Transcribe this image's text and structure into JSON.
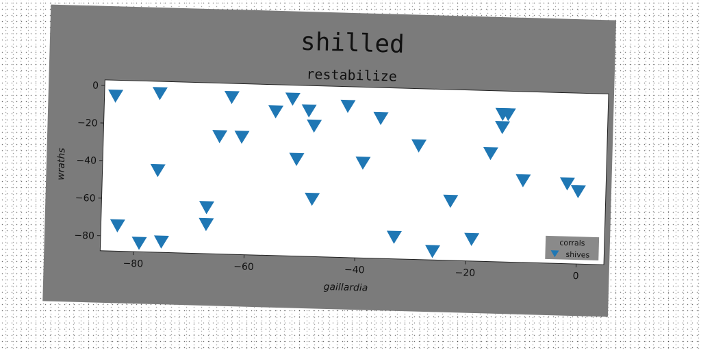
{
  "figure_title": "shilled",
  "colors": {
    "figure_bg": "#7b7b7b",
    "plot_bg": "#ffffff",
    "marker": "#1f77b4",
    "legend_bg": "#8a8a8a"
  },
  "chart_data": {
    "type": "scatter",
    "title": "restabilize",
    "xlabel": "gaillardia",
    "ylabel": "wraths",
    "xlim": [
      -86,
      5
    ],
    "ylim": [
      -88,
      3
    ],
    "xticks": [
      -80,
      -60,
      -40,
      -20,
      0
    ],
    "yticks": [
      0,
      -20,
      -40,
      -60,
      -80
    ],
    "xtick_labels": [
      "−80",
      "−60",
      "−40",
      "−20",
      "0"
    ],
    "ytick_labels": [
      "0",
      "−20",
      "−40",
      "−60",
      "−80"
    ],
    "grid": false,
    "marker": "triangle-down",
    "legend": {
      "title": "corrals",
      "placement": "lower-right",
      "entries": [
        "shives"
      ]
    },
    "series": [
      {
        "name": "shives",
        "x": [
          -84,
          -76,
          -63,
          -55,
          -52,
          -49,
          -48,
          -42,
          -36,
          -65,
          -61,
          -51,
          -39,
          -29,
          -16,
          -14,
          -14,
          -13,
          -10,
          -2,
          0,
          -48,
          -23,
          -19,
          -26,
          -33,
          -67,
          -67,
          -76,
          -75,
          -79,
          -83
        ],
        "y": [
          -5,
          -3,
          -4,
          -11,
          -4,
          -10,
          -18,
          -7,
          -13,
          -25,
          -25,
          -36,
          -37,
          -27,
          -30,
          -9,
          -16,
          -9,
          -44,
          -45,
          -49,
          -57,
          -56,
          -76,
          -83,
          -76,
          -63,
          -72,
          -44,
          -82,
          -83,
          -74
        ]
      }
    ]
  }
}
